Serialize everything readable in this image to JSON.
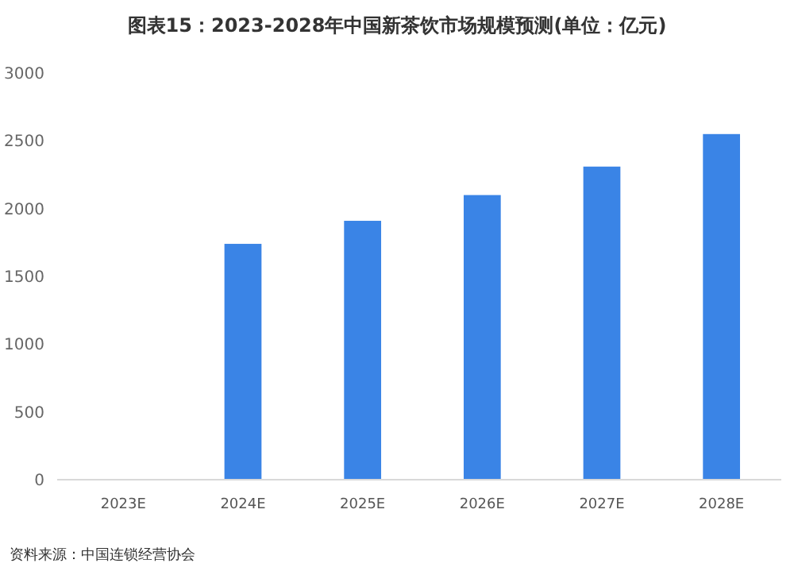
{
  "chart_data": {
    "type": "bar",
    "title": "图表15：2023-2028年中国新茶饮市场规模预测(单位：亿元)",
    "categories": [
      "2023E",
      "2024E",
      "2025E",
      "2026E",
      "2027E",
      "2028E"
    ],
    "values": [
      null,
      1740,
      1910,
      2100,
      2310,
      2550
    ],
    "color": "#3a84e6",
    "ylim": [
      0,
      3000
    ],
    "yticks": [
      0,
      500,
      1000,
      1500,
      2000,
      2500,
      3000
    ],
    "grid": false,
    "annotations": [
      "资料来源：中国连锁经营协会"
    ]
  }
}
